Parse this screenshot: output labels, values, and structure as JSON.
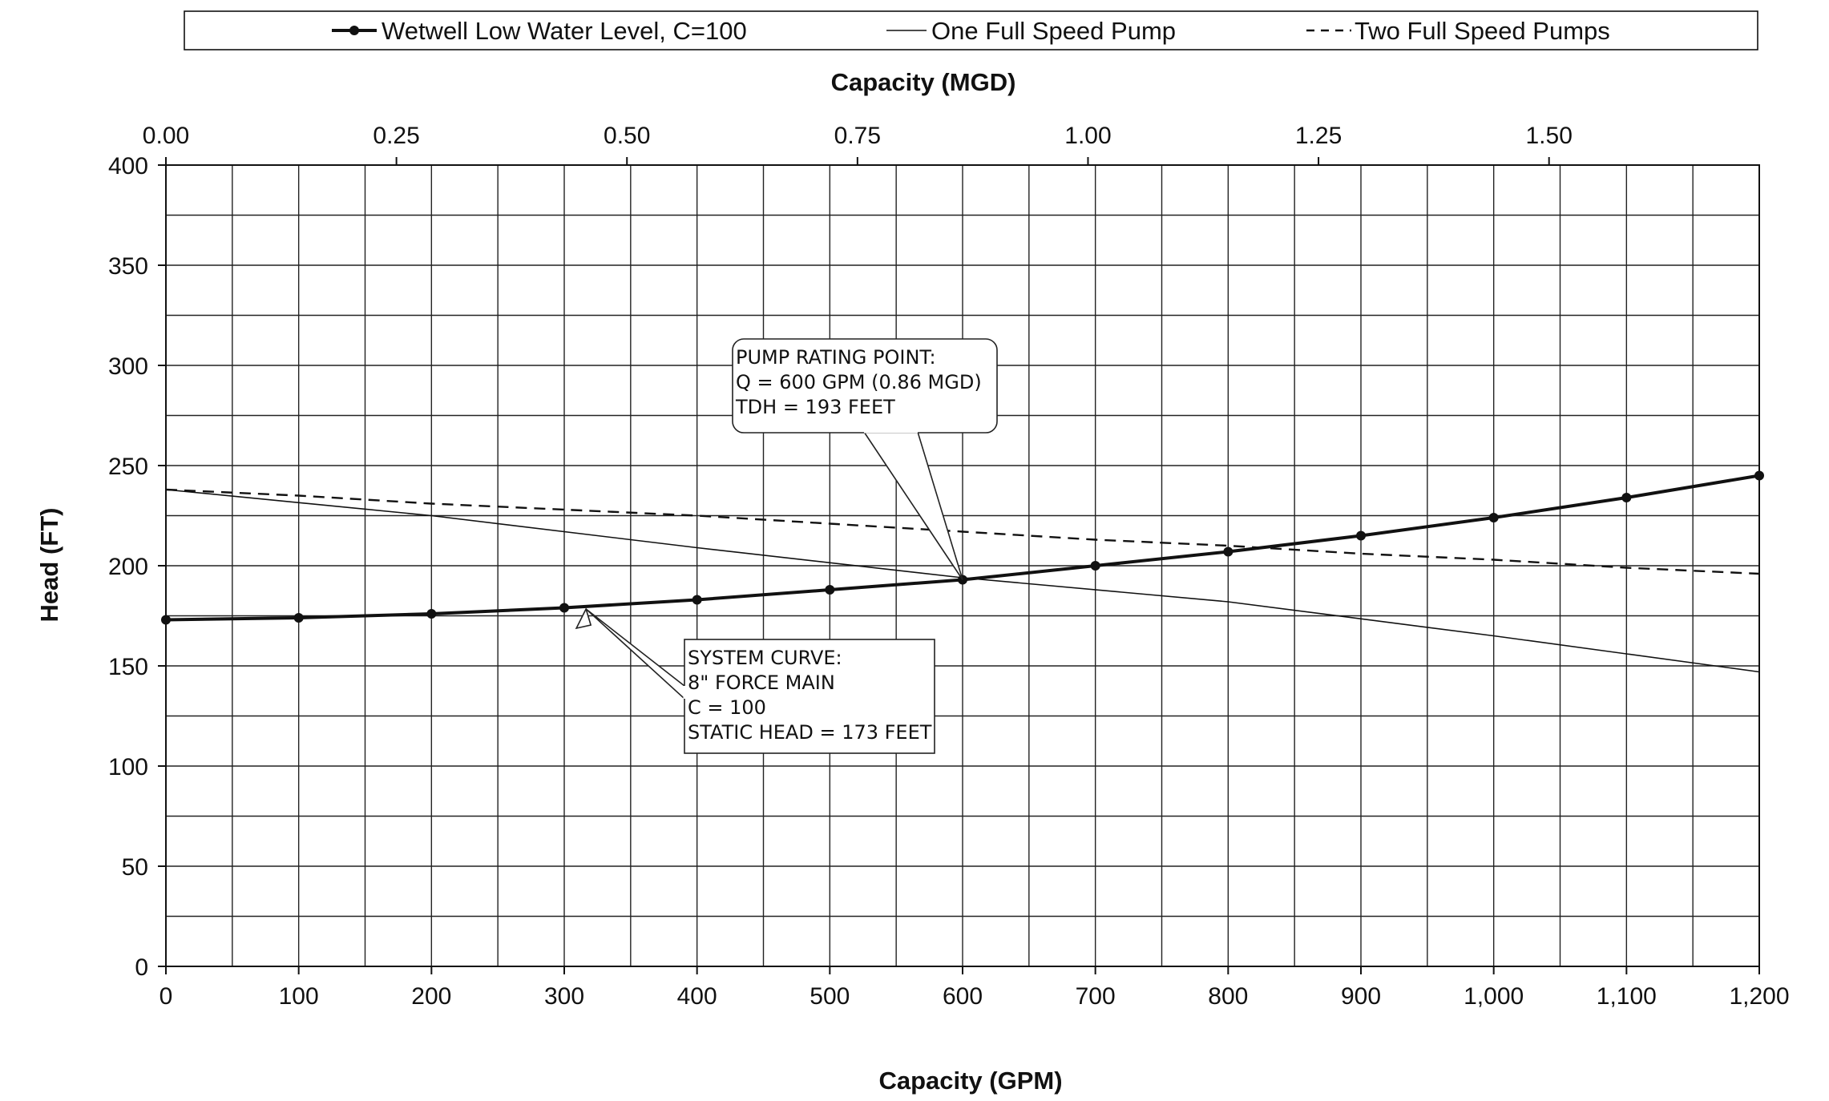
{
  "chart_data": {
    "type": "line",
    "x_axis_bottom": {
      "label": "Capacity (GPM)",
      "min": 0,
      "max": 1200,
      "ticks": [
        0,
        100,
        200,
        300,
        400,
        500,
        600,
        700,
        800,
        900,
        1000,
        1100,
        1200
      ],
      "tick_labels": [
        "0",
        "100",
        "200",
        "300",
        "400",
        "500",
        "600",
        "700",
        "800",
        "900",
        "1,000",
        "1,100",
        "1,200"
      ]
    },
    "x_axis_top": {
      "label": "Capacity (MGD)",
      "min": 0,
      "max": 1.728,
      "ticks": [
        0,
        0.25,
        0.5,
        0.75,
        1.0,
        1.25,
        1.5
      ],
      "tick_labels": [
        "0.00",
        "0.25",
        "0.50",
        "0.75",
        "1.00",
        "1.25",
        "1.50"
      ]
    },
    "y_axis": {
      "label": "Head (FT)",
      "min": 0,
      "max": 400,
      "ticks": [
        0,
        50,
        100,
        150,
        200,
        250,
        300,
        350,
        400
      ],
      "tick_labels": [
        "0",
        "50",
        "100",
        "150",
        "200",
        "250",
        "300",
        "350",
        "400"
      ]
    },
    "grid": true,
    "legend_position": "top",
    "series": [
      {
        "name": "Wetwell Low Water Level, C=100",
        "style": "solid-bold-markers",
        "color": "#111111",
        "x": [
          0,
          100,
          200,
          300,
          400,
          500,
          600,
          700,
          800,
          900,
          1000,
          1100,
          1200
        ],
        "y": [
          173,
          174,
          176,
          179,
          183,
          188,
          193,
          200,
          207,
          215,
          224,
          234,
          245
        ]
      },
      {
        "name": "One Full Speed Pump",
        "style": "solid-thin",
        "color": "#111111",
        "x": [
          0,
          200,
          400,
          600,
          800,
          1000,
          1200
        ],
        "y": [
          238,
          225,
          209,
          194,
          182,
          165,
          147
        ]
      },
      {
        "name": "Two Full Speed Pumps",
        "style": "dashed",
        "color": "#111111",
        "x": [
          0,
          100,
          200,
          300,
          400,
          500,
          600,
          700,
          800,
          900,
          1000,
          1100,
          1200
        ],
        "y": [
          238,
          235,
          231,
          228,
          225,
          221,
          217,
          213,
          210,
          206,
          203,
          199,
          196
        ]
      }
    ],
    "annotations": [
      {
        "id": "rating",
        "lines": [
          "PUMP RATING POINT:",
          "Q = 600 GPM (0.86 MGD)",
          "TDH = 193 FEET"
        ],
        "target": [
          600,
          193
        ]
      },
      {
        "id": "system",
        "lines": [
          "SYSTEM CURVE:",
          "8\" FORCE MAIN",
          "C = 100",
          "STATIC HEAD = 173 FEET"
        ],
        "target": [
          320,
          180
        ]
      }
    ]
  }
}
